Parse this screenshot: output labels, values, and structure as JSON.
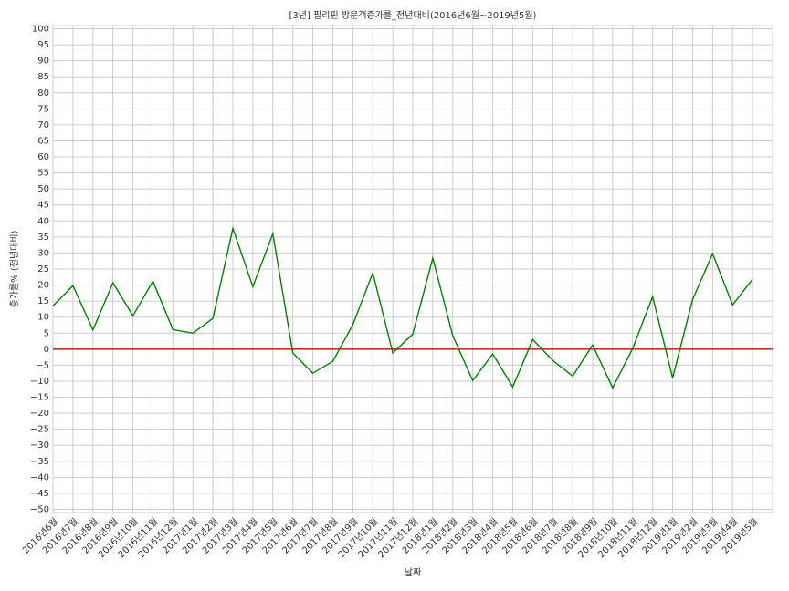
{
  "chart_data": {
    "type": "line",
    "title": "[3년] 필리핀 방문객증가률_전년대비(2016년6월~2019년5월)",
    "x_label": "날짜",
    "y_label": "증가률% (전년대비)",
    "categories": [
      "2016년6월",
      "2016년7월",
      "2016년8월",
      "2016년9월",
      "2016년10월",
      "2016년11월",
      "2016년12월",
      "2017년1월",
      "2017년2월",
      "2017년3월",
      "2017년4월",
      "2017년5월",
      "2017년6월",
      "2017년7월",
      "2017년8월",
      "2017년9월",
      "2017년10월",
      "2017년11월",
      "2017년12월",
      "2018년1월",
      "2018년2월",
      "2018년3월",
      "2018년4월",
      "2018년5월",
      "2018년6월",
      "2018년7월",
      "2018년8월",
      "2018년9월",
      "2018년10월",
      "2018년11월",
      "2018년12월",
      "2019년1월",
      "2019년2월",
      "2019년3월",
      "2019년4월",
      "2019년5월"
    ],
    "values": [
      13.5,
      19.8,
      6,
      20.7,
      10.4,
      21.2,
      6.1,
      5,
      9.6,
      37.7,
      19.5,
      36,
      -1.2,
      -7.5,
      -3.8,
      7.6,
      23.8,
      -1.2,
      4.7,
      28.4,
      4.2,
      -9.8,
      -1.5,
      -11.8,
      3,
      -3.5,
      -8.4,
      1.3,
      -12.1,
      0.2,
      16.4,
      -9,
      15.5,
      29.8,
      13.8,
      21.8
    ],
    "color": "#008000",
    "reference_line": 0,
    "reference_color": "#d62728",
    "ylim": [
      -51,
      101
    ],
    "yticks": [
      {
        "value": -50,
        "label": "−50"
      },
      {
        "value": -45,
        "label": "−45"
      },
      {
        "value": -40,
        "label": "−40"
      },
      {
        "value": -35,
        "label": "−35"
      },
      {
        "value": -30,
        "label": "−30"
      },
      {
        "value": -25,
        "label": "−25"
      },
      {
        "value": -20,
        "label": "−20"
      },
      {
        "value": -15,
        "label": "−15"
      },
      {
        "value": -10,
        "label": "−10"
      },
      {
        "value": -5,
        "label": "−5"
      },
      0,
      5,
      10,
      15,
      20,
      25,
      30,
      35,
      40,
      45,
      50,
      55,
      60,
      65,
      70,
      75,
      80,
      85,
      90,
      95,
      100
    ],
    "grid": true
  }
}
